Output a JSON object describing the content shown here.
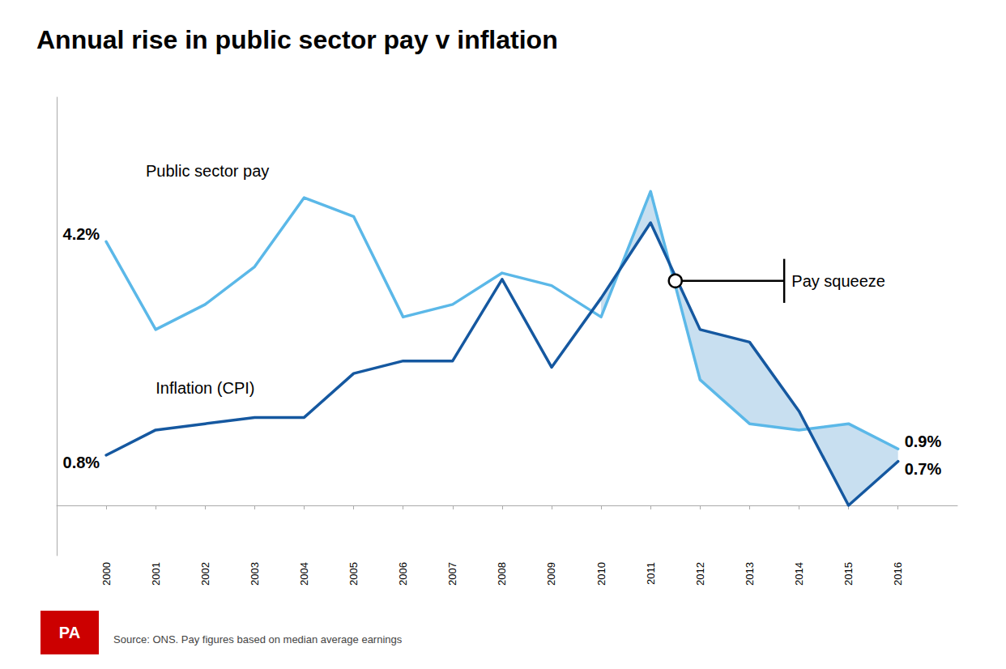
{
  "chart_data": {
    "type": "line",
    "title": "Annual rise in public sector pay v inflation",
    "x": [
      2000,
      2001,
      2002,
      2003,
      2004,
      2005,
      2006,
      2007,
      2008,
      2009,
      2010,
      2011,
      2012,
      2013,
      2014,
      2015,
      2016
    ],
    "xlim": [
      1999.0,
      2017.2
    ],
    "xticks": [
      2000,
      2001,
      2002,
      2003,
      2004,
      2005,
      2006,
      2007,
      2008,
      2009,
      2010,
      2011,
      2012,
      2013,
      2014,
      2015,
      2016
    ],
    "ylim": [
      -0.8,
      6.5
    ],
    "yticks": [],
    "tick_labels": "x",
    "grid": false,
    "series": [
      {
        "name": "Public sector pay",
        "color": "#5bb8e8",
        "values": [
          4.2,
          2.8,
          3.2,
          3.8,
          4.9,
          4.6,
          3.0,
          3.2,
          3.7,
          3.5,
          3.0,
          5.0,
          2.0,
          1.3,
          1.2,
          1.3,
          0.9
        ],
        "value_labels": [
          "4.2%",
          null,
          null,
          null,
          null,
          null,
          null,
          null,
          null,
          null,
          null,
          null,
          null,
          null,
          null,
          null,
          "0.9%"
        ]
      },
      {
        "name": "Inflation (CPI)",
        "color": "#1558a0",
        "values": [
          0.8,
          1.2,
          1.3,
          1.4,
          1.4,
          2.1,
          2.3,
          2.3,
          3.6,
          2.2,
          3.3,
          4.5,
          2.8,
          2.6,
          1.5,
          0.0,
          0.7
        ],
        "value_labels": [
          "0.8%",
          null,
          null,
          null,
          null,
          null,
          null,
          null,
          null,
          null,
          null,
          null,
          null,
          null,
          null,
          null,
          "0.7%"
        ]
      }
    ],
    "highlight": {
      "x": [
        2010,
        2016
      ],
      "color": "#c8dff0",
      "label": "Pay squeeze"
    },
    "source": "Source: ONS. Pay figures based on median average earnings",
    "logo": "PA"
  }
}
